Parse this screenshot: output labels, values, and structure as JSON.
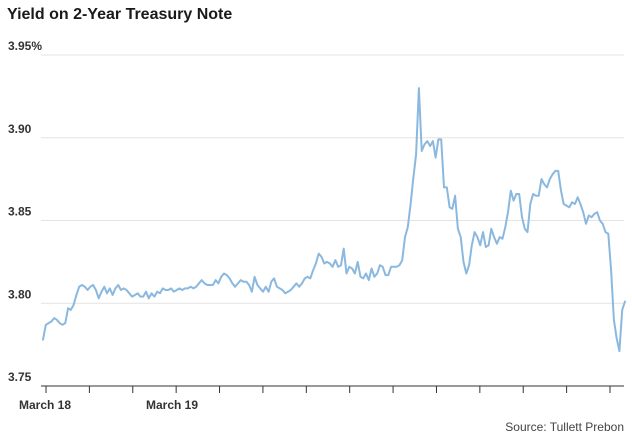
{
  "chart_data": {
    "type": "line",
    "title": "Yield on 2-Year Treasury Note",
    "source": "Source: Tullett Prebon",
    "ylim": [
      3.75,
      3.95
    ],
    "y_ticks": [
      3.75,
      3.8,
      3.85,
      3.9,
      3.95
    ],
    "y_tick_labels": [
      "3.75",
      "3.80",
      "3.85",
      "3.90",
      "3.95%"
    ],
    "x_tick_labels": [
      "March 18",
      "March 19"
    ],
    "grid": "horizontal",
    "line_color": "#8ab8df",
    "grid_color": "#e3e3e3",
    "series": [
      {
        "values": [
          3.778,
          3.787,
          3.788,
          3.789,
          3.791,
          3.79,
          3.788,
          3.787,
          3.788,
          3.797,
          3.796,
          3.799,
          3.805,
          3.81,
          3.811,
          3.81,
          3.808,
          3.81,
          3.811,
          3.808,
          3.803,
          3.807,
          3.81,
          3.806,
          3.809,
          3.805,
          3.809,
          3.811,
          3.808,
          3.809,
          3.808,
          3.806,
          3.804,
          3.805,
          3.806,
          3.804,
          3.804,
          3.807,
          3.803,
          3.806,
          3.804,
          3.807,
          3.806,
          3.809,
          3.808,
          3.808,
          3.809,
          3.807,
          3.808,
          3.809,
          3.808,
          3.809,
          3.809,
          3.81,
          3.809,
          3.81,
          3.812,
          3.814,
          3.812,
          3.811,
          3.811,
          3.811,
          3.814,
          3.812,
          3.816,
          3.818,
          3.817,
          3.815,
          3.812,
          3.81,
          3.812,
          3.814,
          3.813,
          3.813,
          3.811,
          3.807,
          3.816,
          3.811,
          3.809,
          3.807,
          3.81,
          3.807,
          3.813,
          3.815,
          3.81,
          3.809,
          3.808,
          3.806,
          3.807,
          3.808,
          3.81,
          3.812,
          3.81,
          3.812,
          3.815,
          3.816,
          3.815,
          3.82,
          3.824,
          3.83,
          3.828,
          3.824,
          3.825,
          3.824,
          3.822,
          3.826,
          3.822,
          3.823,
          3.833,
          3.818,
          3.822,
          3.821,
          3.818,
          3.825,
          3.816,
          3.815,
          3.818,
          3.814,
          3.821,
          3.816,
          3.818,
          3.823,
          3.822,
          3.817,
          3.817,
          3.822,
          3.822,
          3.822,
          3.823,
          3.826,
          3.84,
          3.846,
          3.86,
          3.876,
          3.89,
          3.93,
          3.892,
          3.896,
          3.898,
          3.895,
          3.898,
          3.888,
          3.899,
          3.899,
          3.87,
          3.87,
          3.858,
          3.857,
          3.865,
          3.845,
          3.84,
          3.825,
          3.818,
          3.823,
          3.835,
          3.843,
          3.84,
          3.835,
          3.843,
          3.834,
          3.835,
          3.845,
          3.84,
          3.836,
          3.84,
          3.839,
          3.846,
          3.855,
          3.868,
          3.862,
          3.866,
          3.866,
          3.852,
          3.845,
          3.843,
          3.86,
          3.866,
          3.865,
          3.865,
          3.875,
          3.872,
          3.87,
          3.875,
          3.878,
          3.88,
          3.88,
          3.868,
          3.86,
          3.859,
          3.858,
          3.861,
          3.86,
          3.864,
          3.86,
          3.855,
          3.848,
          3.853,
          3.852,
          3.854,
          3.855,
          3.85,
          3.848,
          3.843,
          3.842,
          3.82,
          3.79,
          3.779,
          3.771,
          3.796,
          3.801
        ]
      }
    ]
  }
}
